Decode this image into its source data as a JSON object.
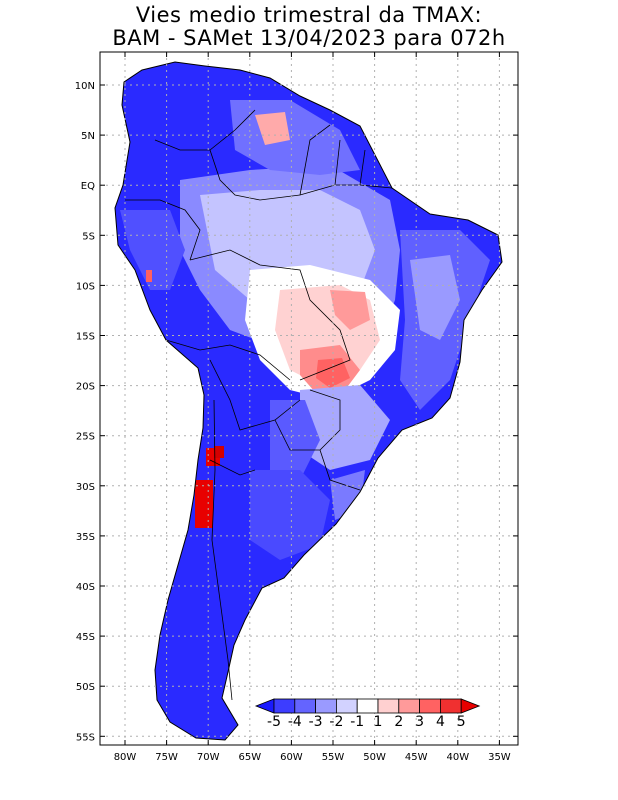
{
  "title": {
    "line1": "Vies medio trimestral da TMAX:",
    "line2": "BAM - SAMet 13/04/2023  para 072h"
  },
  "axes": {
    "lon_ticks": [
      "80W",
      "75W",
      "70W",
      "65W",
      "60W",
      "55W",
      "50W",
      "45W",
      "40W",
      "35W"
    ],
    "lat_ticks": [
      "10N",
      "5N",
      "EQ",
      "5S",
      "10S",
      "15S",
      "20S",
      "25S",
      "30S",
      "35S",
      "40S",
      "45S",
      "50S",
      "55S"
    ]
  },
  "colorbar": {
    "labels": [
      "-5",
      "-4",
      "-3",
      "-2",
      "-1",
      "1",
      "2",
      "3",
      "4",
      "5"
    ],
    "colors": [
      "#1a1aff",
      "#3d3dff",
      "#6464ff",
      "#9a9aff",
      "#d2d2ff",
      "#ffffff",
      "#ffd0d0",
      "#ff9a9a",
      "#ff6262",
      "#f03030",
      "#e80000"
    ]
  },
  "colors": {
    "strong_cold": "#1a1aff",
    "cold": "#4a4aff",
    "mild_cold": "#8a8aff",
    "light_cold": "#c8c8ff",
    "neutral": "#ffffff",
    "light_warm": "#ffcccc",
    "warm": "#ff8a8a",
    "hot": "#e80000",
    "border": "#000000",
    "grid": "#b0b0b0"
  }
}
